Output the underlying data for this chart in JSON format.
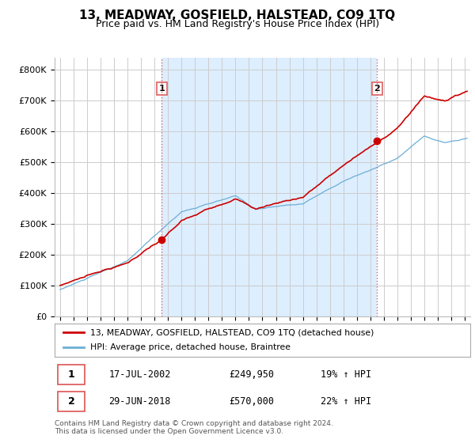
{
  "title": "13, MEADWAY, GOSFIELD, HALSTEAD, CO9 1TQ",
  "subtitle": "Price paid vs. HM Land Registry's House Price Index (HPI)",
  "legend_line1": "13, MEADWAY, GOSFIELD, HALSTEAD, CO9 1TQ (detached house)",
  "legend_line2": "HPI: Average price, detached house, Braintree",
  "sale1_label": "1",
  "sale1_date": "17-JUL-2002",
  "sale1_price": "£249,950",
  "sale1_hpi": "19% ↑ HPI",
  "sale1_year": 2002.54,
  "sale1_value": 249950,
  "sale2_label": "2",
  "sale2_date": "29-JUN-2018",
  "sale2_price": "£570,000",
  "sale2_hpi": "22% ↑ HPI",
  "sale2_year": 2018.49,
  "sale2_value": 570000,
  "hpi_color": "#6baed6",
  "price_color": "#cc0000",
  "marker_color": "#cc0000",
  "dashed_color": "#e06060",
  "shade_color": "#ddeeff",
  "background_color": "#ffffff",
  "grid_color": "#cccccc",
  "footer": "Contains HM Land Registry data © Crown copyright and database right 2024.\nThis data is licensed under the Open Government Licence v3.0.",
  "ylim_min": 0,
  "ylim_max": 840000,
  "xlim_min": 1994.6,
  "xlim_max": 2025.4,
  "title_fontsize": 11,
  "subtitle_fontsize": 9,
  "tick_fontsize": 8
}
